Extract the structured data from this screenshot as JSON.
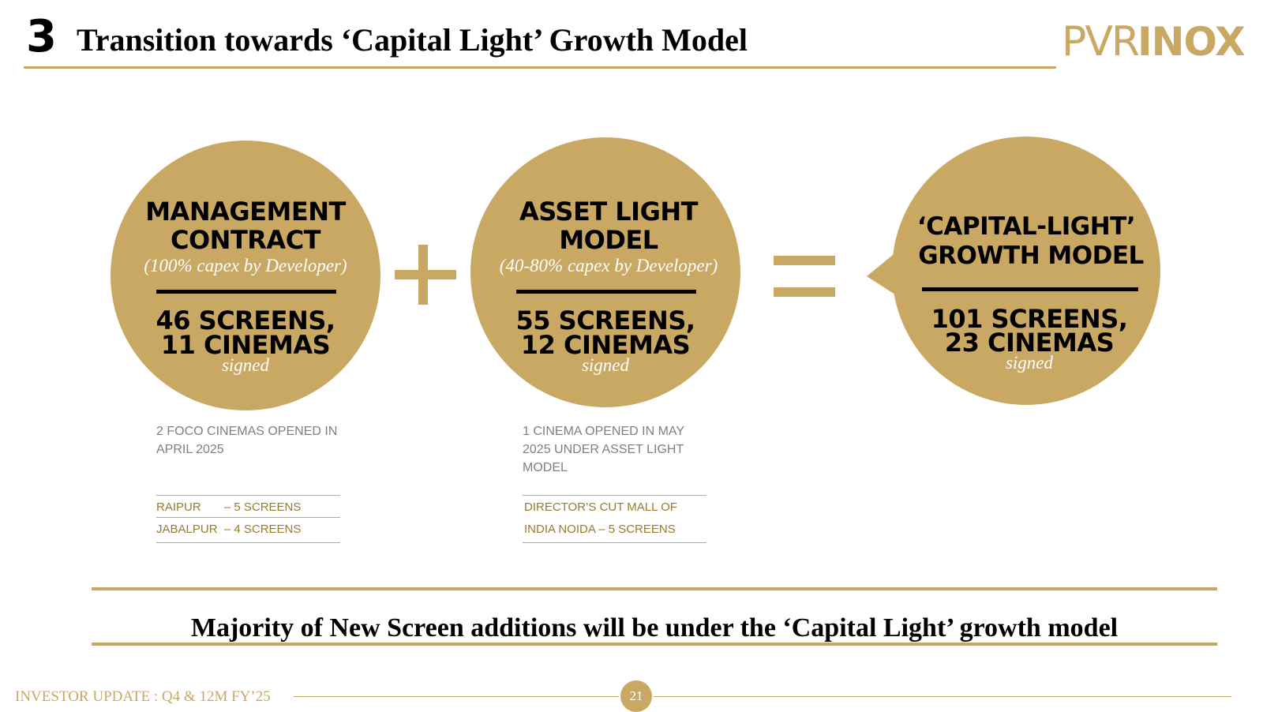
{
  "header": {
    "section_number": "3",
    "title": "Transition towards ‘Capital Light’ Growth Model",
    "logo_left": "PVR",
    "logo_right": "INOX"
  },
  "models": [
    {
      "title_line1": "MANAGEMENT",
      "title_line2": "CONTRACT",
      "subtitle": "(100% capex by Developer)",
      "screens_line1": "46 SCREENS,",
      "screens_line2": "11 CINEMAS",
      "signed": "signed",
      "note": "2 FOCO CINEMAS OPENED IN APRIL 2025",
      "list": [
        "RAIPUR       – 5 SCREENS",
        "JABALPUR  – 4 SCREENS"
      ]
    },
    {
      "title_line1": "ASSET LIGHT",
      "title_line2": "MODEL",
      "subtitle": "(40-80% capex by Developer)",
      "screens_line1": "55 SCREENS,",
      "screens_line2": "12 CINEMAS",
      "signed": "signed",
      "note": "1 CINEMA OPENED IN MAY 2025 UNDER ASSET LIGHT MODEL",
      "list": [
        "DIRECTOR’S CUT MALL OF",
        "INDIA NOIDA – 5 SCREENS"
      ]
    },
    {
      "title_line1": "‘CAPITAL-LIGHT’",
      "title_line2": "GROWTH MODEL",
      "screens_line1": "101 SCREENS,",
      "screens_line2": "23 CINEMAS",
      "signed": "signed"
    }
  ],
  "banner": {
    "text": "Majority of New Screen additions will be under the ‘Capital Light’ growth model"
  },
  "footer": {
    "text": "INVESTOR UPDATE : Q4 & 12M FY’25",
    "page_number": "21"
  },
  "colors": {
    "gold": "#c9a864",
    "dark_gold": "#9a7a2d",
    "text": "#000000",
    "note_gray": "#7f7f7f"
  }
}
